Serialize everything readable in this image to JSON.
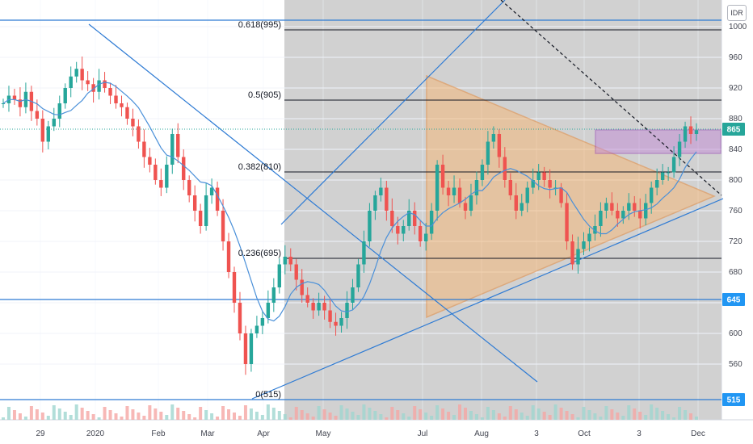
{
  "chart_data": {
    "type": "candlestick",
    "currency": "IDR",
    "last_price": 865,
    "y_axis": {
      "ticks": [
        560,
        600,
        640,
        680,
        720,
        760,
        800,
        840,
        880,
        920,
        960,
        1000
      ],
      "range": [
        515,
        1040
      ]
    },
    "x_axis": {
      "ticks": [
        "29",
        "2020",
        "Feb",
        "Mar",
        "Apr",
        "May",
        "Jul",
        "Aug",
        "3",
        "Oct",
        "3",
        "Dec"
      ]
    },
    "fib_levels": [
      {
        "label": "0.618(995)",
        "price": 995
      },
      {
        "label": "0.5(905)",
        "price": 905
      },
      {
        "label": "0.382(810)",
        "price": 810
      },
      {
        "label": "0.236(695)",
        "price": 695
      },
      {
        "label": "0(515)",
        "price": 515
      }
    ],
    "horizontal_lines": [
      1000,
      645,
      515
    ],
    "price_tags": [
      {
        "text": "865",
        "price": 865,
        "color": "#26a69a"
      },
      {
        "text": "645",
        "price": 645,
        "color": "#2196f3"
      },
      {
        "text": "515",
        "price": 515,
        "color": "#2196f3"
      }
    ],
    "candles_close_series": [
      900,
      910,
      905,
      895,
      915,
      890,
      880,
      850,
      870,
      880,
      900,
      920,
      935,
      945,
      930,
      925,
      915,
      930,
      920,
      910,
      900,
      895,
      880,
      870,
      850,
      830,
      820,
      800,
      790,
      820,
      860,
      830,
      800,
      780,
      760,
      740,
      780,
      790,
      760,
      720,
      680,
      640,
      600,
      560,
      600,
      610,
      620,
      640,
      660,
      690,
      700,
      690,
      670,
      650,
      640,
      630,
      640,
      630,
      615,
      610,
      620,
      640,
      660,
      690,
      720,
      760,
      780,
      790,
      760,
      740,
      730,
      740,
      760,
      740,
      720,
      730,
      760,
      820,
      790,
      780,
      790,
      770,
      760,
      780,
      800,
      820,
      850,
      860,
      830,
      800,
      780,
      760,
      770,
      790,
      800,
      810,
      800,
      790,
      790,
      770,
      720,
      690,
      710,
      720,
      730,
      740,
      760,
      770,
      760,
      750,
      760,
      770,
      760,
      750,
      770,
      790,
      800,
      810,
      810,
      830,
      850,
      870,
      860,
      865
    ]
  }
}
